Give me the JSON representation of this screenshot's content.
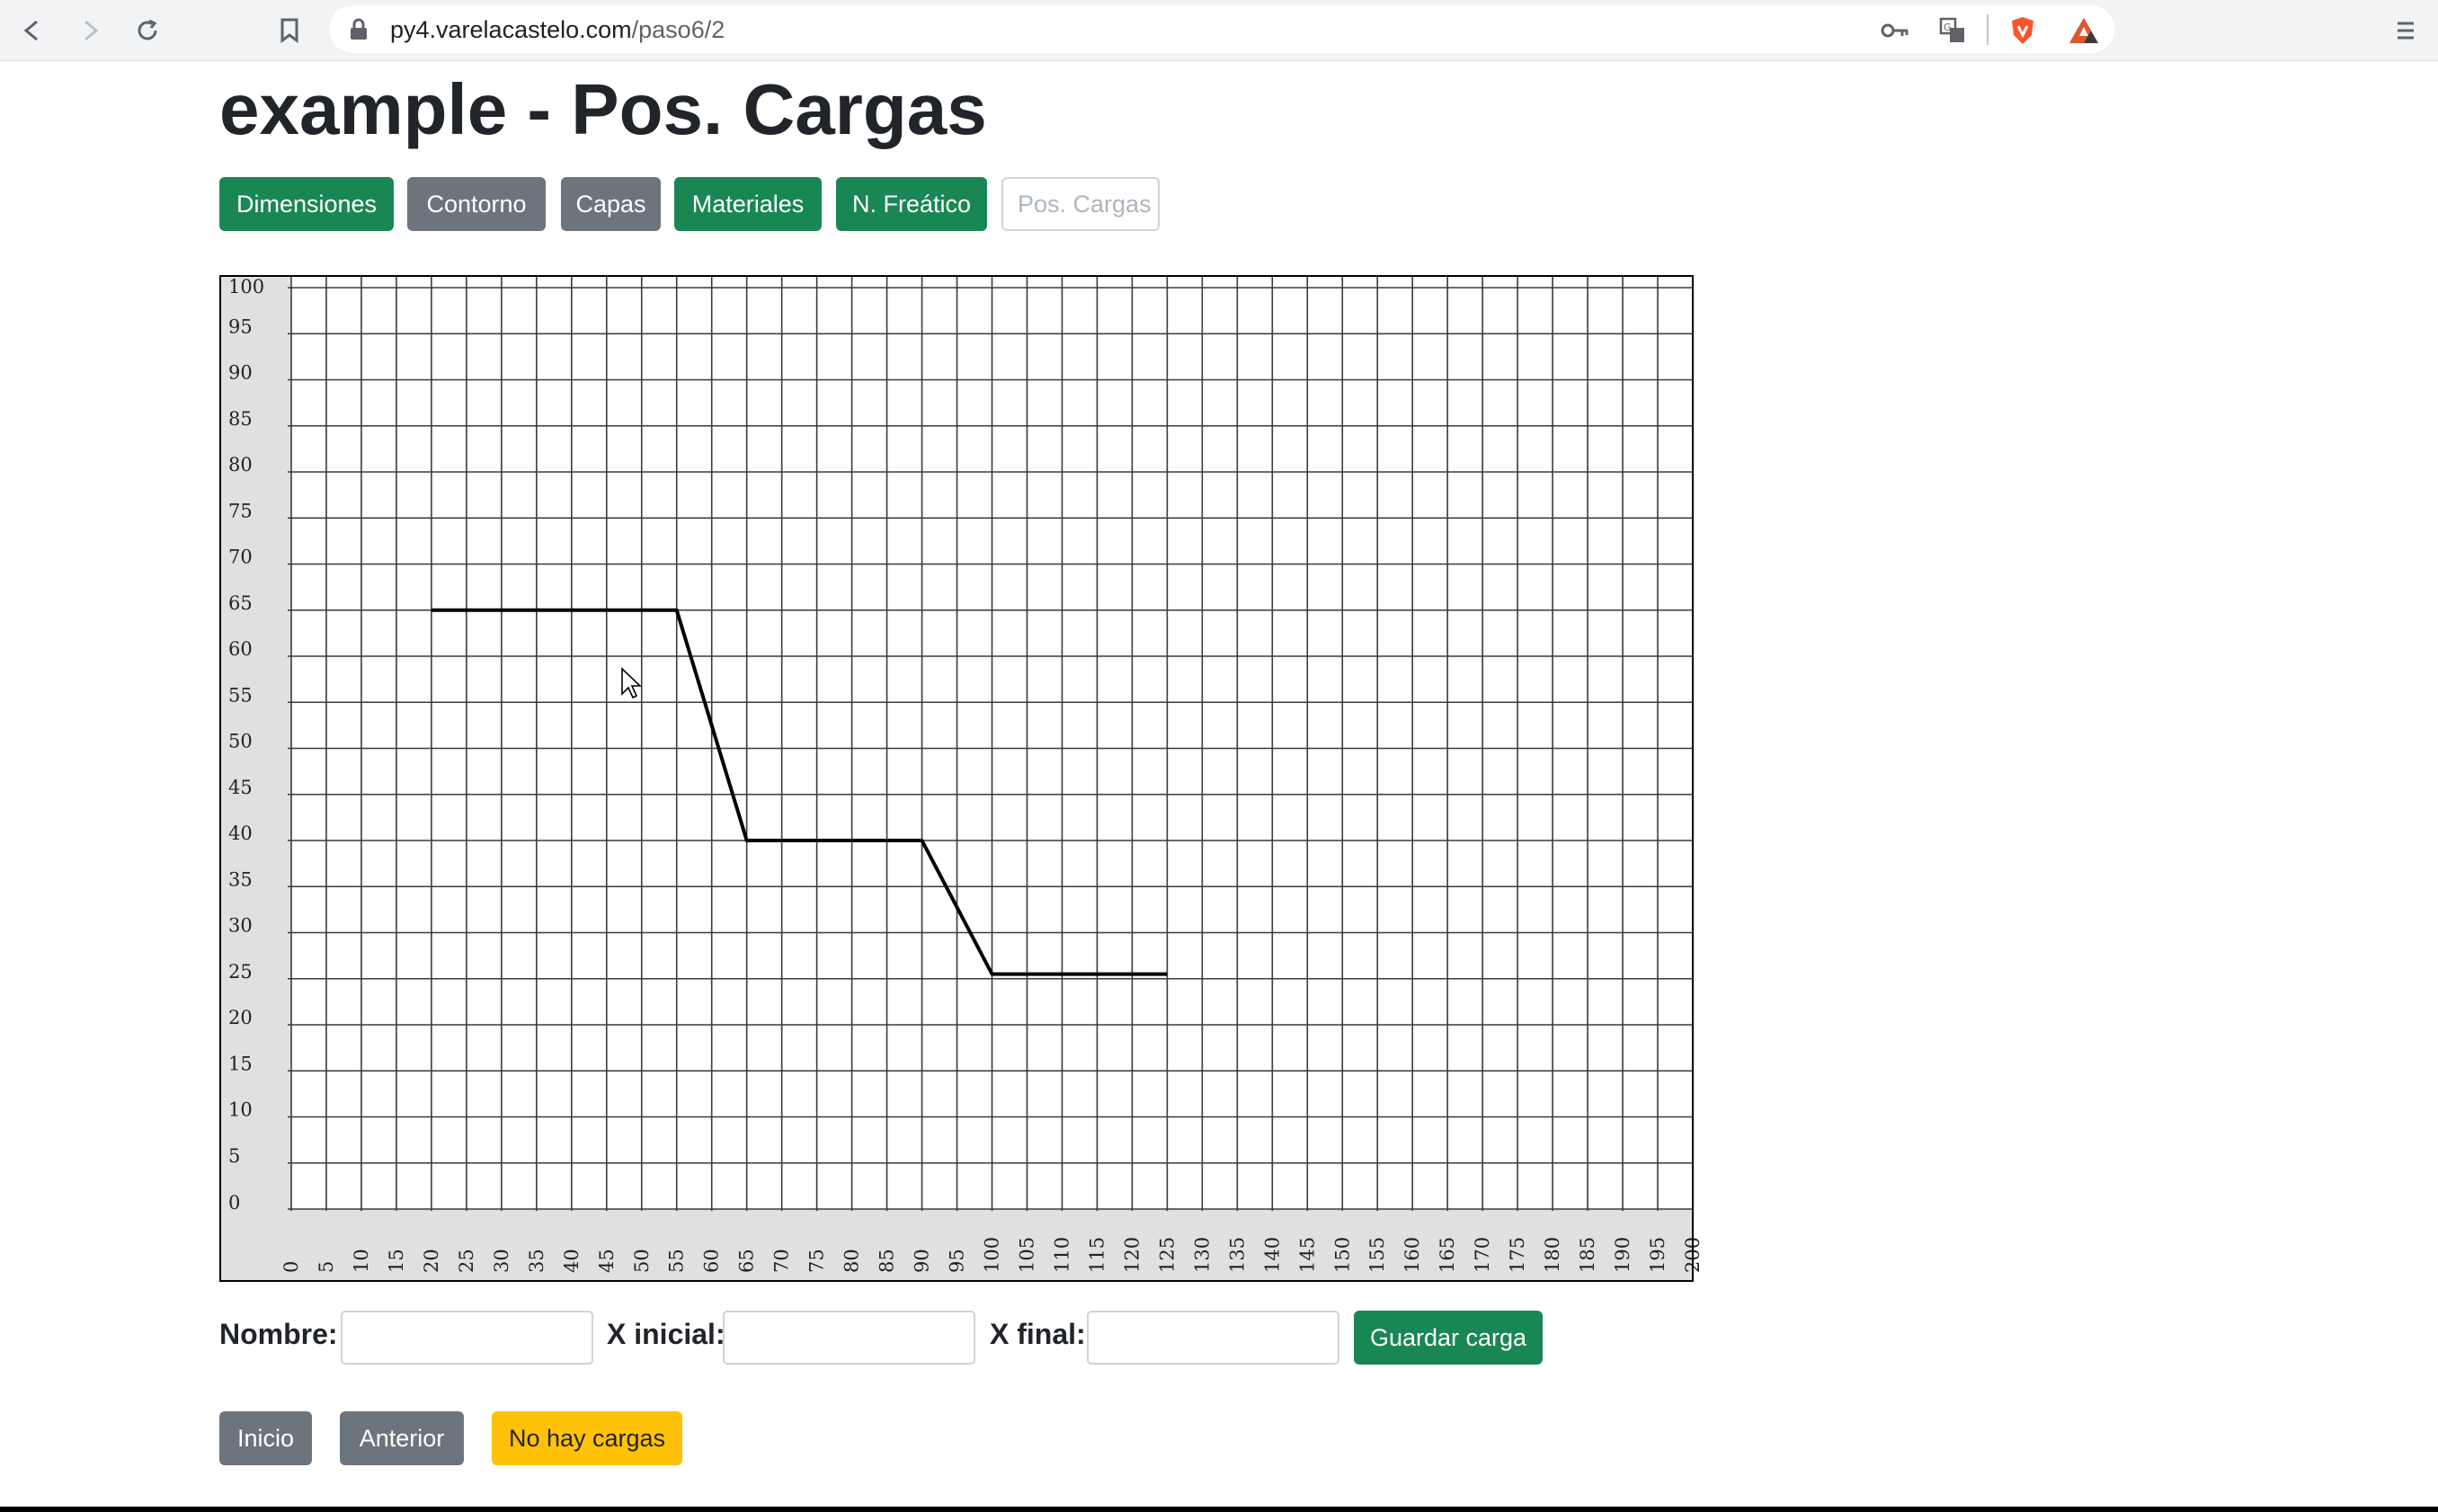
{
  "browser": {
    "url_domain": "py4.varelacastelo.com",
    "url_path": "/paso6/2"
  },
  "page": {
    "title": "example - Pos. Cargas"
  },
  "steps": [
    {
      "label": "Dimensiones",
      "style": "green"
    },
    {
      "label": "Contorno",
      "style": "grey"
    },
    {
      "label": "Capas",
      "style": "grey"
    },
    {
      "label": "Materiales",
      "style": "green"
    },
    {
      "label": "N. Freático",
      "style": "green"
    },
    {
      "label": "Pos. Cargas",
      "style": "outline"
    }
  ],
  "form": {
    "nombre_label": "Nombre:",
    "nombre_value": "",
    "xinicial_label": "X inicial:",
    "xinicial_value": "",
    "xfinal_label": "X final:",
    "xfinal_value": "",
    "save_label": "Guardar carga"
  },
  "footer": {
    "inicio_label": "Inicio",
    "anterior_label": "Anterior",
    "status_label": "No hay cargas"
  },
  "colors": {
    "green": "#198754",
    "grey": "#6c757d",
    "yellow": "#ffc107",
    "axis_band": "#e0e0e0"
  },
  "chart_data": {
    "type": "line",
    "title": "",
    "xlabel": "",
    "ylabel": "",
    "xlim": [
      0,
      200
    ],
    "ylim": [
      0,
      100
    ],
    "x_ticks": [
      0,
      5,
      10,
      15,
      20,
      25,
      30,
      35,
      40,
      45,
      50,
      55,
      60,
      65,
      70,
      75,
      80,
      85,
      90,
      95,
      100,
      105,
      110,
      115,
      120,
      125,
      130,
      135,
      140,
      145,
      150,
      155,
      160,
      165,
      170,
      175,
      180,
      185,
      190,
      195,
      200
    ],
    "y_ticks": [
      0,
      5,
      10,
      15,
      20,
      25,
      30,
      35,
      40,
      45,
      50,
      55,
      60,
      65,
      70,
      75,
      80,
      85,
      90,
      95,
      100
    ],
    "grid": true,
    "series": [
      {
        "x": [
          20,
          55,
          65,
          90,
          100,
          125
        ],
        "y": [
          65,
          65,
          40,
          40,
          25.5,
          25.5
        ]
      }
    ]
  }
}
